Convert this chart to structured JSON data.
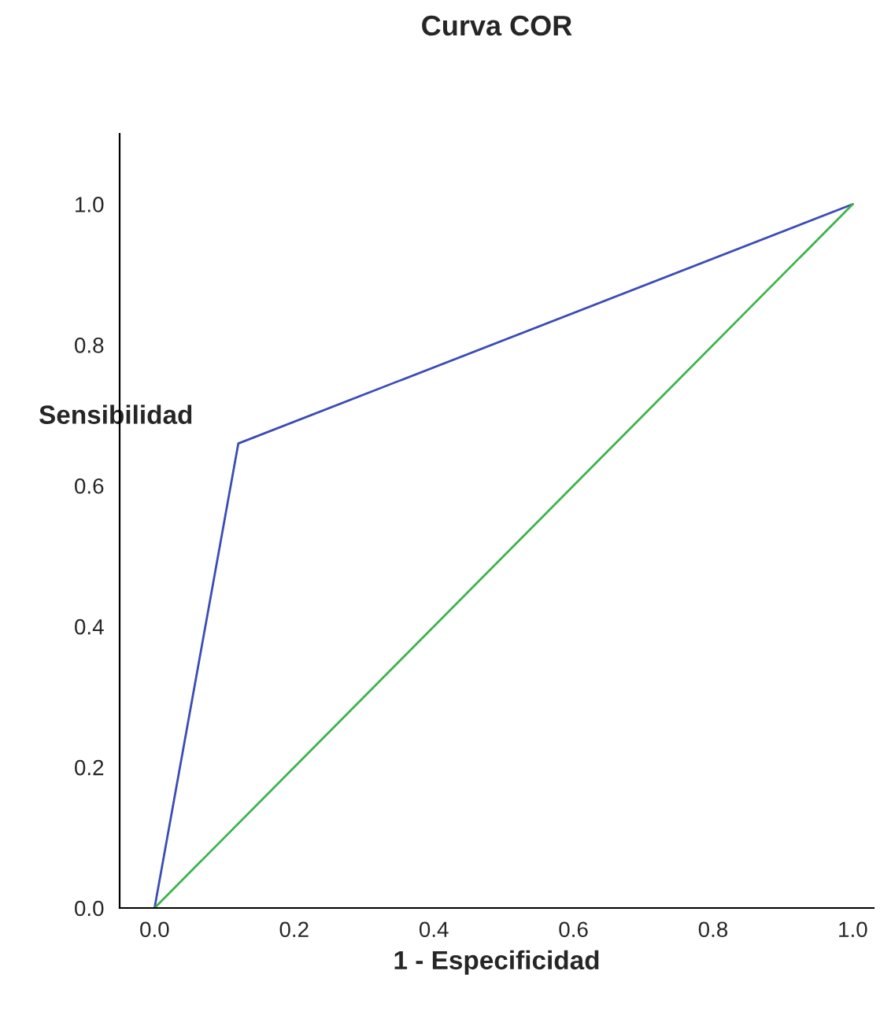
{
  "chart_data": {
    "type": "line",
    "title": "Curva COR",
    "xlabel": "1 - Especificidad",
    "ylabel": "Sensibilidad",
    "series": [
      {
        "color": "#3b4cb5",
        "x": [
          0.0,
          0.12,
          1.0
        ],
        "values": [
          0.0,
          0.66,
          1.0
        ]
      },
      {
        "color": "#3cb44b",
        "x": [
          0.0,
          1.0
        ],
        "values": [
          0.0,
          1.0
        ]
      }
    ],
    "xlim": [
      -0.05,
      1.03
    ],
    "ylim": [
      0.0,
      1.1
    ],
    "xticks": [
      {
        "value": 0.0,
        "label": "0.0"
      },
      {
        "value": 0.2,
        "label": "0.2"
      },
      {
        "value": 0.4,
        "label": "0.4"
      },
      {
        "value": 0.6,
        "label": "0.6"
      },
      {
        "value": 0.8,
        "label": "0.8"
      },
      {
        "value": 1.0,
        "label": "1.0"
      }
    ],
    "yticks": [
      {
        "value": 0.0,
        "label": "0.0"
      },
      {
        "value": 0.2,
        "label": "0.2"
      },
      {
        "value": 0.4,
        "label": "0.4"
      },
      {
        "value": 0.6,
        "label": "0.6"
      },
      {
        "value": 0.8,
        "label": "0.8"
      },
      {
        "value": 1.0,
        "label": "1.0"
      }
    ],
    "grid": false,
    "marker": "none",
    "line_style": "solid"
  }
}
